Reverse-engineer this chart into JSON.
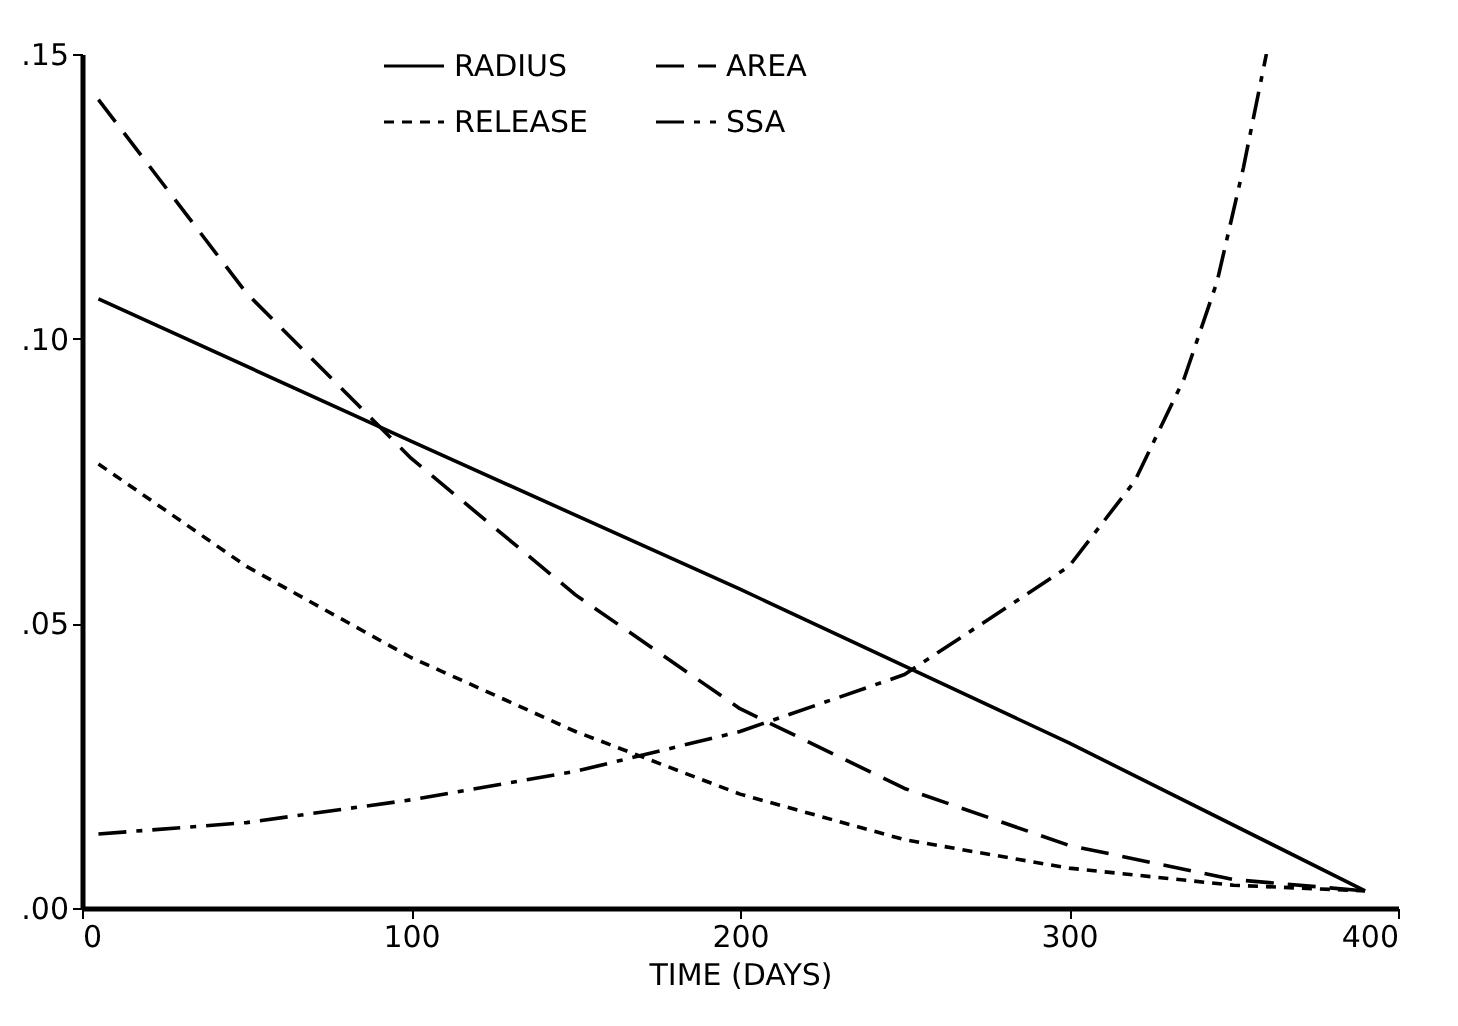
{
  "chart_data": {
    "type": "line",
    "xlabel": "TIME (DAYS)",
    "xlim": [
      0,
      400
    ],
    "xticks": [
      0,
      100,
      200,
      300,
      400
    ],
    "ylim": [
      0,
      0.15
    ],
    "yticks": [
      {
        "value": 0,
        "label": ".00"
      },
      {
        "value": 0.05,
        "label": ".05"
      },
      {
        "value": 0.1,
        "label": ".10"
      },
      {
        "value": 0.15,
        "label": ".15"
      }
    ],
    "grid": false,
    "legend": "top",
    "series": [
      {
        "name": "RADIUS",
        "color": "#000000",
        "line_style": "solid",
        "x": [
          5,
          100,
          200,
          300,
          390
        ],
        "values": [
          0.107,
          0.082,
          0.056,
          0.029,
          0.003
        ]
      },
      {
        "name": "AREA",
        "color": "#000000",
        "line_style": "dashed",
        "x": [
          5,
          50,
          100,
          150,
          200,
          250,
          300,
          350,
          390
        ],
        "values": [
          0.142,
          0.108,
          0.079,
          0.055,
          0.035,
          0.021,
          0.011,
          0.005,
          0.003
        ]
      },
      {
        "name": "RELEASE",
        "color": "#000000",
        "line_style": "dotted",
        "x": [
          5,
          50,
          100,
          150,
          200,
          250,
          300,
          350,
          390
        ],
        "values": [
          0.078,
          0.06,
          0.044,
          0.031,
          0.02,
          0.012,
          0.007,
          0.004,
          0.003
        ]
      },
      {
        "name": "SSA",
        "color": "#000000",
        "line_style": "dashdot",
        "x": [
          5,
          50,
          100,
          150,
          200,
          250,
          300,
          320,
          335,
          345,
          353,
          360
        ],
        "values": [
          0.013,
          0.015,
          0.019,
          0.024,
          0.031,
          0.041,
          0.06,
          0.075,
          0.093,
          0.11,
          0.13,
          0.15
        ]
      }
    ]
  }
}
